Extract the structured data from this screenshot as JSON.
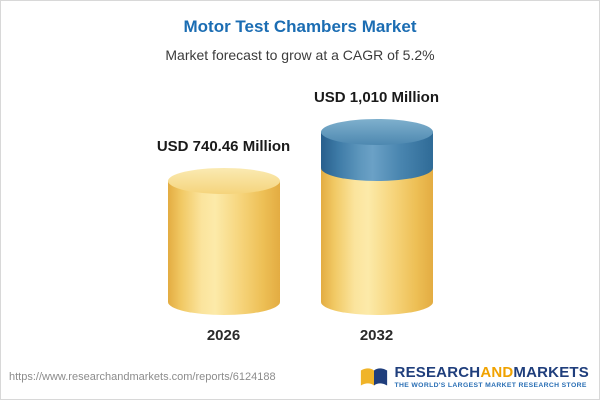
{
  "header": {
    "title": "Motor Test Chambers Market",
    "subtitle": "Market forecast to grow at a CAGR of 5.2%"
  },
  "chart_data": {
    "type": "bar",
    "style": "3d-cylinder",
    "title": "Motor Test Chambers Market",
    "subtitle": "Market forecast to grow at a CAGR of 5.2%",
    "unit": "USD Million",
    "cagr": "5.2%",
    "categories": [
      "2026",
      "2032"
    ],
    "values": [
      740.46,
      1010
    ],
    "value_labels": [
      "USD 740.46 Million",
      "USD 1,010 Million"
    ],
    "segments_note": "2032 bar drawn yellow up to 2026 level with blue growth segment on top",
    "legend": "none",
    "grid": "off",
    "colors": {
      "bar_base": "#f0c75e",
      "growth_segment": "#3d7ca9",
      "title_text": "#1b6db3"
    }
  },
  "footer": {
    "url": "https://www.researchandmarkets.com/reports/6124188",
    "logo": {
      "word1": "RESEARCH",
      "word2": "AND",
      "word3": "MARKETS",
      "tagline": "THE WORLD'S LARGEST MARKET RESEARCH STORE"
    }
  }
}
